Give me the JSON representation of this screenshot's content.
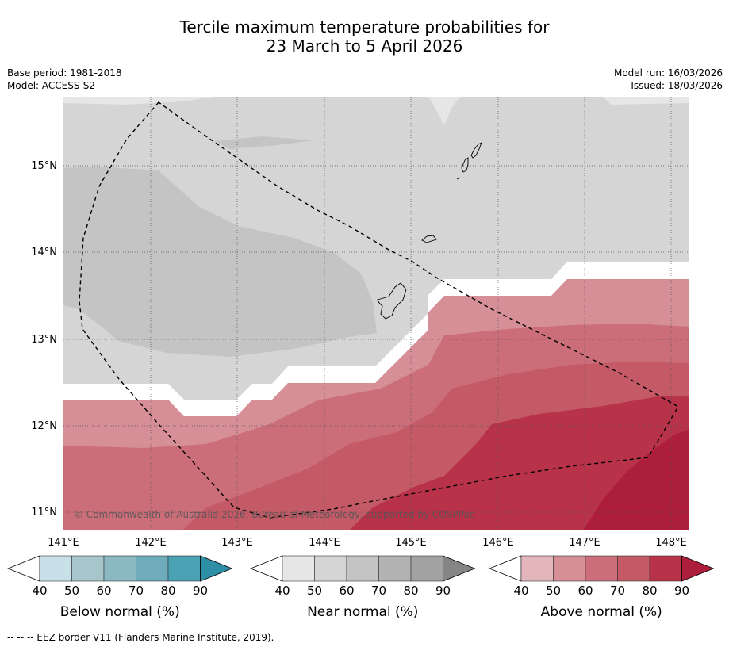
{
  "title": {
    "line1": "Tercile maximum temperature probabilities for",
    "line2": "23 March to 5 April 2026"
  },
  "meta": {
    "base_period": "Base period: 1981-2018",
    "model": "Model: ACCESS-S2",
    "model_run": "Model run: 16/03/2026",
    "issued": "Issued: 18/03/2026"
  },
  "map": {
    "lat_labels": [
      "15°N",
      "14°N",
      "13°N",
      "12°N",
      "11°N"
    ],
    "lon_labels": [
      "141°E",
      "142°E",
      "143°E",
      "144°E",
      "145°E",
      "146°E",
      "147°E",
      "148°E"
    ],
    "copyright": "© Commonwealth of Australia 2026, Bureau of Meteorology, supported by COSPPac"
  },
  "legends": [
    {
      "name": "below",
      "label": "Below normal (%)",
      "ticks": [
        "40",
        "50",
        "60",
        "70",
        "80",
        "90"
      ],
      "colors": [
        "#ffffff",
        "#c8e1e8",
        "#a6c6cb",
        "#8ab8c3",
        "#6eacbc",
        "#4aa2b4",
        "#2e8ea5"
      ]
    },
    {
      "name": "near",
      "label": "Near normal (%)",
      "ticks": [
        "40",
        "50",
        "60",
        "70",
        "80",
        "90"
      ],
      "colors": [
        "#ffffff",
        "#e6e6e6",
        "#d5d5d5",
        "#c4c4c4",
        "#b3b3b3",
        "#a2a2a2",
        "#858585"
      ]
    },
    {
      "name": "above",
      "label": "Above normal (%)",
      "ticks": [
        "40",
        "50",
        "60",
        "70",
        "80",
        "90"
      ],
      "colors": [
        "#ffffff",
        "#e3b6bc",
        "#d68e97",
        "#cc6e79",
        "#c35a66",
        "#b83249",
        "#ad1e3c"
      ]
    }
  ],
  "footnote": "--  --  -- EEZ border V11 (Flanders Marine Institute, 2019)."
}
